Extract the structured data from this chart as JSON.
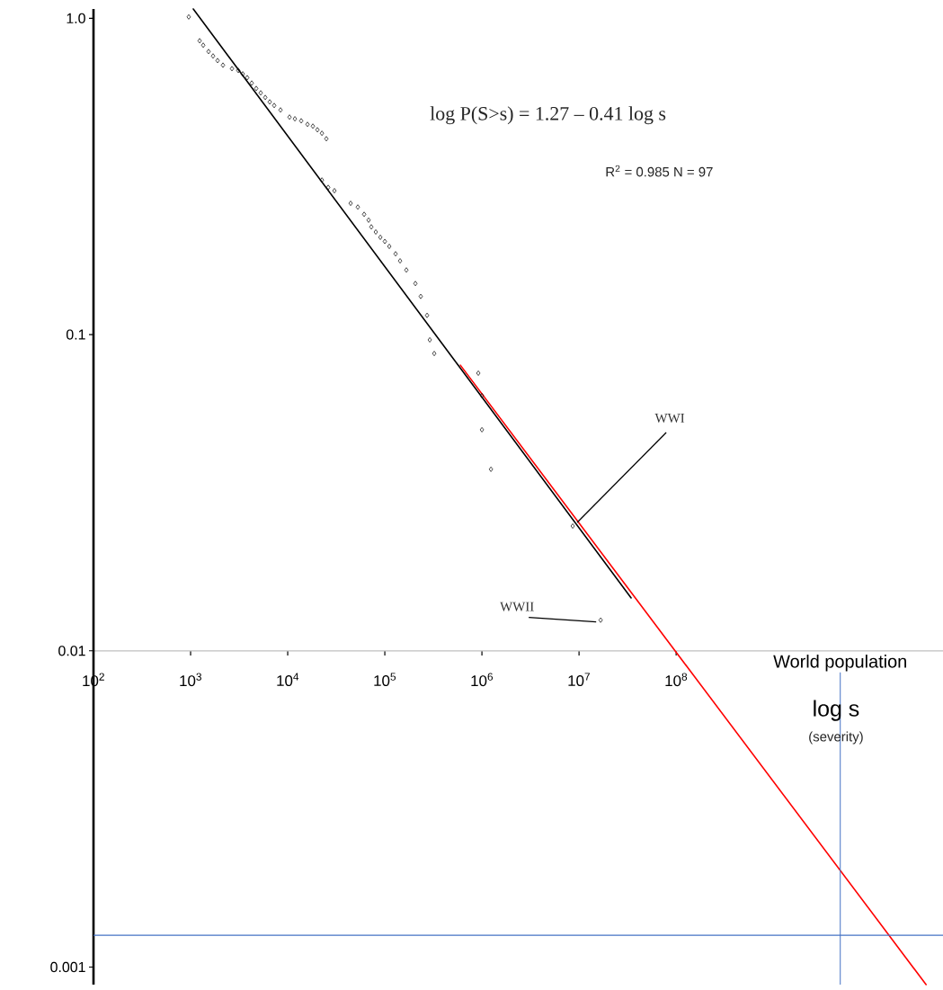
{
  "chart_data": {
    "type": "scatter",
    "xlabel": "log s",
    "annotations": [
      "log P(S>s) = 1.27 – 0.41 log s",
      "R$^{2}$ = 0.985   N = 97",
      {
        "text": "WWI",
        "x": 8610000,
        "y": 0.0248
      },
      {
        "text": "WWII",
        "x": 16700000,
        "y": 0.0125
      },
      "(severity)"
    ],
    "log": "xy",
    "xlim": [
      100,
      56000000000
    ],
    "ylim": [
      0.00088,
      1.07
    ],
    "xticks": [
      {
        "value": 100,
        "label": "10$^{2}$"
      },
      {
        "value": 1000,
        "label": "10$^{3}$"
      },
      {
        "value": 10000,
        "label": "10$^{4}$"
      },
      {
        "value": 100000,
        "label": "10$^{5}$"
      },
      {
        "value": 1000000,
        "label": "10$^{6}$"
      },
      {
        "value": 10000000,
        "label": "10$^{7}$"
      },
      {
        "value": 100000000,
        "label": "10$^{8}$"
      }
    ],
    "yticks": [
      {
        "value": 1,
        "label": "1.0"
      },
      0.1,
      0.01,
      0.001
    ],
    "ref_lines": [
      {
        "axis": "x",
        "value": 4900000000,
        "label": "World population",
        "color": "#4472c4"
      },
      {
        "axis": "y",
        "value": 0.00126,
        "color": "#4472c4"
      }
    ],
    "series": [
      {
        "type": "scatter",
        "marker": "diamond",
        "color": "#000000",
        "x": [
          957,
          1239,
          1349,
          1531,
          1703,
          1896,
          2154,
          2666,
          3097,
          3443,
          3829,
          4262,
          4742,
          5272,
          5875,
          6531,
          7261,
          8433,
          10440,
          11860,
          13770,
          15990,
          18160,
          20230,
          22510,
          25000,
          22510,
          26120,
          30280,
          44460,
          52720,
          61240,
          68080,
          72610,
          80750,
          89950,
          100000,
          111200,
          129100,
          143600,
          166700,
          206500,
          234400,
          272300,
          290400,
          322800,
          918000,
          1000000,
          1000000,
          1239000,
          8610000,
          16700000
        ],
        "values": [
          1.01,
          0.849,
          0.822,
          0.785,
          0.76,
          0.735,
          0.711,
          0.693,
          0.684,
          0.667,
          0.649,
          0.624,
          0.6,
          0.581,
          0.562,
          0.544,
          0.53,
          0.513,
          0.487,
          0.481,
          0.474,
          0.462,
          0.456,
          0.444,
          0.433,
          0.416,
          0.308,
          0.292,
          0.285,
          0.26,
          0.253,
          0.24,
          0.23,
          0.219,
          0.211,
          0.203,
          0.197,
          0.19,
          0.18,
          0.171,
          0.16,
          0.145,
          0.132,
          0.115,
          0.0962,
          0.0871,
          0.0755,
          0.0641,
          0.05,
          0.0375,
          0.0248,
          0.0125
        ]
      },
      {
        "type": "line",
        "marker": "none",
        "color": "#000000",
        "x": [
          1066,
          34400000
        ],
        "values": [
          1.07,
          0.0147
        ]
      },
      {
        "type": "line",
        "marker": "none",
        "color": "#ff0000",
        "x": [
          600000,
          37500000000
        ],
        "values": [
          0.08,
          0.00088
        ]
      }
    ]
  }
}
